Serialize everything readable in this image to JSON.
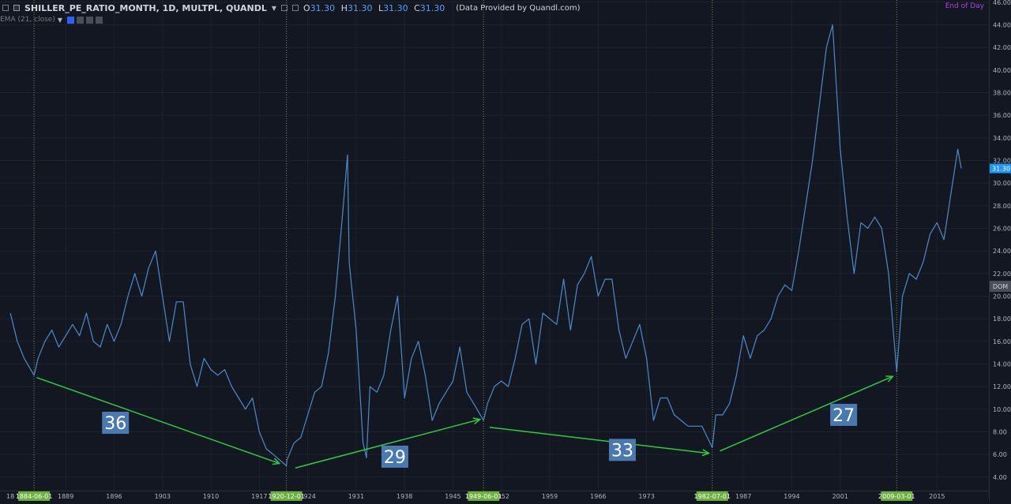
{
  "header": {
    "symbol": "SHILLER_PE_RATIO_MONTH, 1D, MULTPL, QUANDL",
    "open_label": "O",
    "open": "31.30",
    "high_label": "H",
    "high": "31.30",
    "low_label": "L",
    "low": "31.30",
    "close_label": "C",
    "close": "31.30",
    "provider": "(Data Provided by Quandl.com)"
  },
  "indicator": {
    "label": "EMA (21, close)"
  },
  "session": "End of Day",
  "price_tag": "31.30",
  "dom_label": "DOM",
  "colors": {
    "background": "#131722",
    "series": "#4d8ac9",
    "arrow": "#2ecc40",
    "annotation_box": "#4a79b0",
    "date_marker": "#6bb13c",
    "price_tag": "#2196f3",
    "grid": "#1e222d",
    "vline": "#8fa86a"
  },
  "chart_data": {
    "type": "line",
    "series": [
      {
        "x": [
          1881,
          1882,
          1883,
          1884.42,
          1885,
          1886,
          1887,
          1888,
          1889,
          1890,
          1891,
          1892,
          1893,
          1894,
          1895,
          1896,
          1897,
          1898,
          1899,
          1900,
          1901,
          1902,
          1903,
          1904,
          1905,
          1906,
          1907,
          1908,
          1909,
          1910,
          1911,
          1912,
          1913,
          1914,
          1915,
          1916,
          1917,
          1918,
          1919,
          1920.92,
          1921,
          1922,
          1923,
          1924,
          1925,
          1926,
          1927,
          1928,
          1929,
          1929.75,
          1930,
          1931,
          1932,
          1932.5,
          1933,
          1934,
          1935,
          1936,
          1937,
          1938,
          1939,
          1940,
          1941,
          1942,
          1943,
          1944,
          1945,
          1946,
          1947,
          1948,
          1949.42,
          1950,
          1951,
          1952,
          1953,
          1954,
          1955,
          1956,
          1957,
          1958,
          1959,
          1960,
          1961,
          1962,
          1963,
          1964,
          1965,
          1966,
          1967,
          1968,
          1969,
          1970,
          1971,
          1972,
          1973,
          1974,
          1975,
          1976,
          1977,
          1978,
          1979,
          1980,
          1981,
          1982.5,
          1983,
          1984,
          1985,
          1986,
          1987,
          1988,
          1989,
          1990,
          1991,
          1992,
          1993,
          1994,
          1995,
          1996,
          1997,
          1998,
          1999,
          1999.9,
          2000,
          2001,
          2002,
          2003,
          2004,
          2005,
          2006,
          2007,
          2008,
          2009.17,
          2010,
          2011,
          2012,
          2013,
          2014,
          2015,
          2016,
          2017,
          2018,
          2018.5
        ],
        "y": [
          18.5,
          16.0,
          14.5,
          13.0,
          14.5,
          16.0,
          17.0,
          15.5,
          16.5,
          17.5,
          16.5,
          18.5,
          16.0,
          15.5,
          17.5,
          16.0,
          17.5,
          20.0,
          22.0,
          20.0,
          22.5,
          24.0,
          20.0,
          16.0,
          19.5,
          19.5,
          14.0,
          12.0,
          14.5,
          13.5,
          13.0,
          13.5,
          12.0,
          11.0,
          10.0,
          11.0,
          8.0,
          6.5,
          6.0,
          5.0,
          5.5,
          7.0,
          7.5,
          9.5,
          11.5,
          12.0,
          15.0,
          20.0,
          27.0,
          32.5,
          23.0,
          17.0,
          7.0,
          5.7,
          12.0,
          11.5,
          13.0,
          17.0,
          20.0,
          11.0,
          14.5,
          16.0,
          13.0,
          9.0,
          10.5,
          11.5,
          12.5,
          15.5,
          11.5,
          10.5,
          9.0,
          10.5,
          12.0,
          12.5,
          12.0,
          14.5,
          17.5,
          18.0,
          14.0,
          18.5,
          18.0,
          17.5,
          21.5,
          17.0,
          21.0,
          22.0,
          23.5,
          20.0,
          21.5,
          21.5,
          17.0,
          14.5,
          16.0,
          17.5,
          14.5,
          9.0,
          11.0,
          11.0,
          9.5,
          9.0,
          8.5,
          8.5,
          8.5,
          6.6,
          9.5,
          9.5,
          10.5,
          13.0,
          16.5,
          14.5,
          16.5,
          17.0,
          18.0,
          20.0,
          21.0,
          20.5,
          24.0,
          28.0,
          32.0,
          37.0,
          42.0,
          44.0,
          43.0,
          33.0,
          27.0,
          22.0,
          26.5,
          26.0,
          27.0,
          26.0,
          22.0,
          13.3,
          20.0,
          22.0,
          21.5,
          23.0,
          25.5,
          26.5,
          25.0,
          29.0,
          33.0,
          31.3
        ]
      }
    ],
    "x_tick_labels": [
      "1889",
      "1896",
      "1903",
      "1910",
      "1917",
      "1924",
      "1931",
      "1938",
      "1945",
      "1952",
      "1959",
      "1966",
      "1973",
      "1987",
      "1994",
      "2001",
      "2015"
    ],
    "x_tick_values": [
      1889,
      1896,
      1903,
      1910,
      1917,
      1924,
      1931,
      1938,
      1945,
      1952,
      1959,
      1966,
      1973,
      1987,
      1994,
      2001,
      2015
    ],
    "clipped_tick_labels": [
      {
        "text": "18",
        "x": 1881
      },
      {
        "text": "19",
        "x": 1981
      }
    ],
    "date_markers": [
      {
        "label": "1884-06-01",
        "x": 1884.42
      },
      {
        "label": "1920-12-01",
        "x": 1920.92
      },
      {
        "label": "1949-06-01",
        "x": 1949.42
      },
      {
        "label": "1982-07-01",
        "x": 1982.5
      },
      {
        "label": "2009-03-01",
        "x": 2009.17
      }
    ],
    "y_tick_labels": [
      "4.00",
      "6.00",
      "8.00",
      "10.00",
      "12.00",
      "14.00",
      "16.00",
      "18.00",
      "20.00",
      "22.00",
      "24.00",
      "26.00",
      "28.00",
      "30.00",
      "32.00",
      "34.00",
      "36.00",
      "38.00",
      "40.00",
      "42.00",
      "44.00",
      "46.00"
    ],
    "y_tick_values": [
      4,
      6,
      8,
      10,
      12,
      14,
      16,
      18,
      20,
      22,
      24,
      26,
      28,
      30,
      32,
      34,
      36,
      38,
      40,
      42,
      44,
      46
    ],
    "xlim": [
      1879.5,
      2022.5
    ],
    "ylim": [
      2.8,
      46.2
    ],
    "arrows": [
      {
        "from": [
          1884.8,
          12.8
        ],
        "to": [
          1919.9,
          5.2
        ]
      },
      {
        "from": [
          1922.2,
          4.8
        ],
        "to": [
          1948.9,
          9.1
        ]
      },
      {
        "from": [
          1950.3,
          8.4
        ],
        "to": [
          1982.0,
          6.1
        ]
      },
      {
        "from": [
          1983.6,
          6.3
        ],
        "to": [
          2008.6,
          12.9
        ]
      }
    ],
    "annotations": [
      {
        "text": "36",
        "x": 1896.2,
        "y": 8.8
      },
      {
        "text": "29",
        "x": 1936.6,
        "y": 5.8
      },
      {
        "text": "33",
        "x": 1969.5,
        "y": 6.4
      },
      {
        "text": "27",
        "x": 2001.5,
        "y": 9.5
      }
    ]
  }
}
